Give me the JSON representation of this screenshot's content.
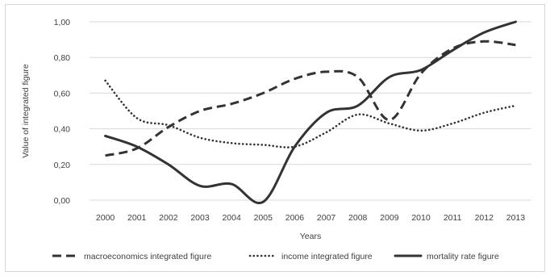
{
  "chart_data": {
    "type": "line",
    "x": [
      "2000",
      "2001",
      "2002",
      "2003",
      "2004",
      "2005",
      "2006",
      "2007",
      "2008",
      "2009",
      "2010",
      "2011",
      "2012",
      "2013"
    ],
    "xlabel": "Years",
    "ylabel": "Value of integrated figure",
    "ylim": [
      0,
      1
    ],
    "yticks": [
      "0,00",
      "0,20",
      "0,40",
      "0,60",
      "0,80",
      "1,00"
    ],
    "grid": "horizontal",
    "legend_position": "bottom",
    "series": [
      {
        "name": "macroeconomics integrated figure",
        "style": "dashed",
        "color": "#333333",
        "values": [
          0.25,
          0.29,
          0.41,
          0.5,
          0.54,
          0.6,
          0.68,
          0.72,
          0.69,
          0.45,
          0.71,
          0.85,
          0.89,
          0.87
        ]
      },
      {
        "name": "income integrated figure",
        "style": "dotted",
        "color": "#333333",
        "values": [
          0.67,
          0.46,
          0.42,
          0.35,
          0.32,
          0.31,
          0.3,
          0.38,
          0.48,
          0.43,
          0.39,
          0.43,
          0.49,
          0.53
        ]
      },
      {
        "name": "mortality rate figure",
        "style": "solid",
        "color": "#333333",
        "values": [
          0.36,
          0.3,
          0.2,
          0.08,
          0.09,
          -0.01,
          0.3,
          0.49,
          0.53,
          0.69,
          0.73,
          0.84,
          0.94,
          1.0
        ]
      }
    ]
  }
}
